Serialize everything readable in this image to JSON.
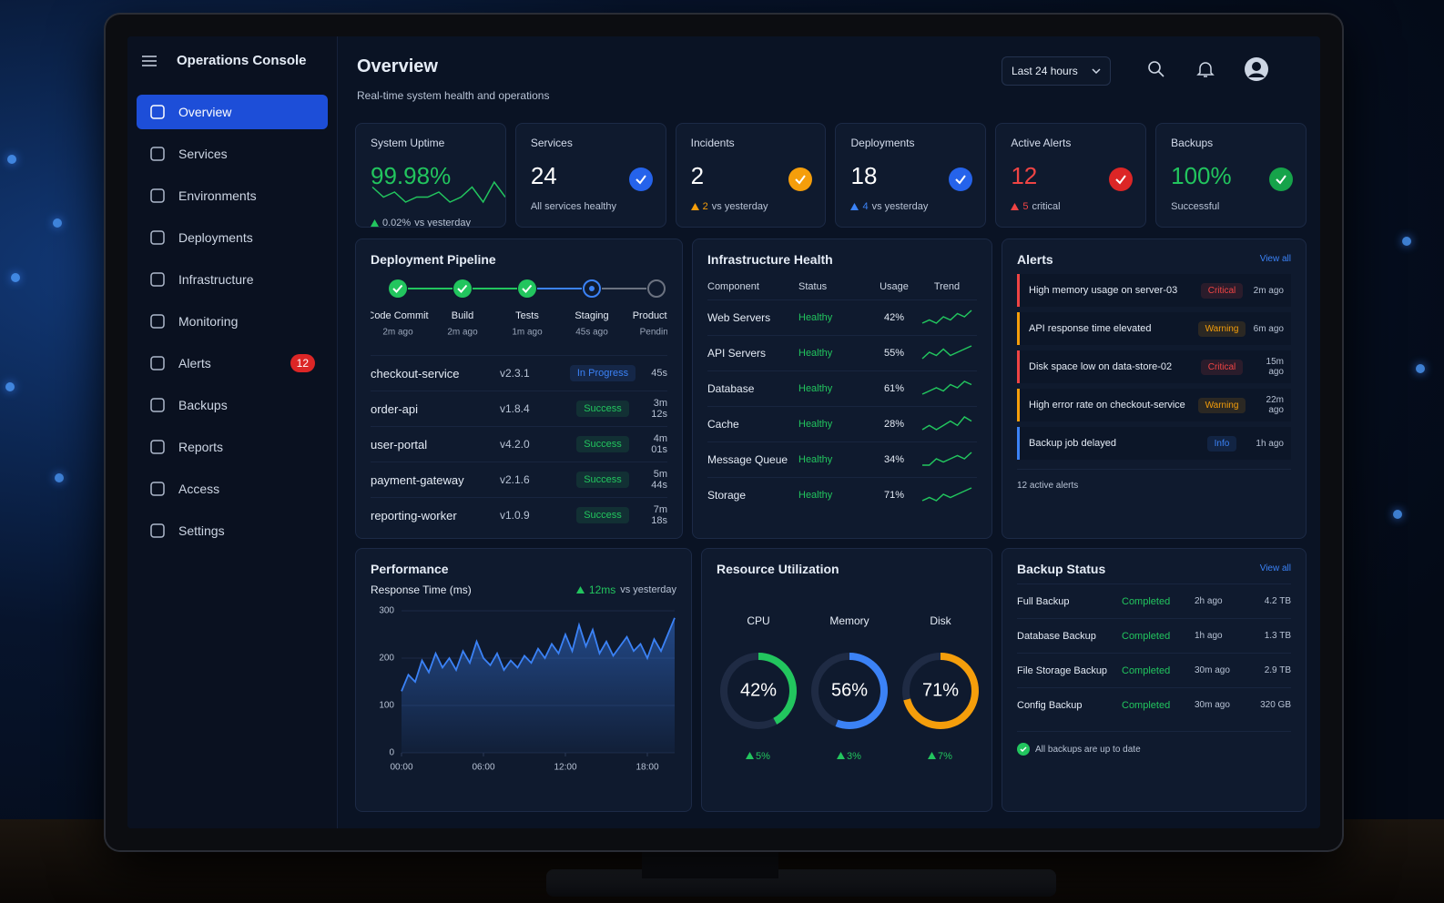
{
  "sidebar": {
    "title": "Operations Console",
    "nav": [
      {
        "label": "Overview",
        "active": true
      },
      {
        "label": "Services"
      },
      {
        "label": "Environments"
      },
      {
        "label": "Deployments"
      },
      {
        "label": "Infrastructure"
      },
      {
        "label": "Monitoring"
      },
      {
        "label": "Alerts",
        "badge": "12"
      },
      {
        "label": "Backups"
      },
      {
        "label": "Reports"
      },
      {
        "label": "Access"
      },
      {
        "label": "Settings"
      }
    ]
  },
  "header": {
    "title": "Overview",
    "subtitle": "Real-time system health and operations",
    "time_range": "Last 24 hours"
  },
  "kpis": [
    {
      "label": "System Uptime",
      "value": "99.98%",
      "color": "#22c55e",
      "delta": "0.02%",
      "delta_text": "vs yesterday",
      "delta_color": "#22c55e",
      "trend": [
        5,
        3,
        4,
        2,
        3,
        3,
        4,
        2,
        3,
        5,
        2,
        6,
        3
      ]
    },
    {
      "label": "Services",
      "value": "24",
      "note": "All services healthy",
      "icon_color": "#2563eb"
    },
    {
      "label": "Incidents",
      "value": "2",
      "delta": "2",
      "delta_text": "vs yesterday",
      "delta_color": "#f59e0b",
      "icon_color": "#f59e0b"
    },
    {
      "label": "Deployments",
      "value": "18",
      "delta": "4",
      "delta_text": "vs yesterday",
      "delta_color": "#3b82f6",
      "icon_color": "#2563eb"
    },
    {
      "label": "Active Alerts",
      "value": "12",
      "color": "#ef4444",
      "delta": "5",
      "delta_text": "critical",
      "delta_color": "#ef4444",
      "icon_color": "#dc2626"
    },
    {
      "label": "Backups",
      "value": "100%",
      "color": "#22c55e",
      "note": "Successful",
      "icon_color": "#16a34a"
    }
  ],
  "pipeline": {
    "title": "Deployment Pipeline",
    "stages": [
      {
        "name": "Code Commit",
        "time": "2m ago",
        "state": "done"
      },
      {
        "name": "Build",
        "time": "2m ago",
        "state": "done"
      },
      {
        "name": "Tests",
        "time": "1m ago",
        "state": "done"
      },
      {
        "name": "Staging",
        "time": "45s ago",
        "state": "active"
      },
      {
        "name": "Production",
        "time": "Pending",
        "state": "pending"
      }
    ],
    "deployments": [
      {
        "service": "checkout-service",
        "version": "v2.3.1",
        "status": "In Progress",
        "status_color": "#3b82f6",
        "duration": "45s"
      },
      {
        "service": "order-api",
        "version": "v1.8.4",
        "status": "Success",
        "status_color": "#22c55e",
        "duration": "3m 12s"
      },
      {
        "service": "user-portal",
        "version": "v4.2.0",
        "status": "Success",
        "status_color": "#22c55e",
        "duration": "4m 01s"
      },
      {
        "service": "payment-gateway",
        "version": "v2.1.6",
        "status": "Success",
        "status_color": "#22c55e",
        "duration": "5m 44s"
      },
      {
        "service": "reporting-worker",
        "version": "v1.0.9",
        "status": "Success",
        "status_color": "#22c55e",
        "duration": "7m 18s"
      }
    ]
  },
  "infrastructure": {
    "title": "Infrastructure Health",
    "columns": [
      "Component",
      "Status",
      "Usage",
      "Trend"
    ],
    "rows": [
      {
        "component": "Web Servers",
        "status": "Healthy",
        "usage": "42%",
        "trend": [
          2,
          3,
          2,
          4,
          3,
          5,
          4,
          6
        ]
      },
      {
        "component": "API Servers",
        "status": "Healthy",
        "usage": "55%",
        "trend": [
          2,
          4,
          3,
          5,
          3,
          4,
          5,
          6
        ]
      },
      {
        "component": "Database",
        "status": "Healthy",
        "usage": "61%",
        "trend": [
          2,
          3,
          4,
          3,
          5,
          4,
          6,
          5
        ]
      },
      {
        "component": "Cache",
        "status": "Healthy",
        "usage": "28%",
        "trend": [
          2,
          3,
          2,
          3,
          4,
          3,
          5,
          4
        ]
      },
      {
        "component": "Message Queue",
        "status": "Healthy",
        "usage": "34%",
        "trend": [
          2,
          2,
          4,
          3,
          4,
          5,
          4,
          6
        ]
      },
      {
        "component": "Storage",
        "status": "Healthy",
        "usage": "71%",
        "trend": [
          2,
          3,
          2,
          4,
          3,
          4,
          5,
          6
        ]
      }
    ]
  },
  "alerts": {
    "title": "Alerts",
    "view_all": "View all",
    "footer": "12 active alerts",
    "items": [
      {
        "text": "High memory usage on server-03",
        "severity": "Critical",
        "color": "#ef4444",
        "time": "2m ago"
      },
      {
        "text": "API response time elevated",
        "severity": "Warning",
        "color": "#f59e0b",
        "time": "6m ago"
      },
      {
        "text": "Disk space low on data-store-02",
        "severity": "Critical",
        "color": "#ef4444",
        "time": "15m ago"
      },
      {
        "text": "High error rate on checkout-service",
        "severity": "Warning",
        "color": "#f59e0b",
        "time": "22m ago"
      },
      {
        "text": "Backup job delayed",
        "severity": "Info",
        "color": "#3b82f6",
        "time": "1h ago"
      }
    ]
  },
  "performance": {
    "title": "Performance",
    "chart_data": {
      "type": "line",
      "y_label": "Response Time (ms)",
      "delta": "12ms",
      "delta_text": "vs yesterday",
      "color": "#3b82f6",
      "xlim": [
        0,
        20
      ],
      "ylim": [
        0,
        300
      ],
      "yticks": [
        0,
        100,
        200,
        300
      ],
      "xticks": [
        {
          "value": 0,
          "label": "00:00"
        },
        {
          "value": 6,
          "label": "06:00"
        },
        {
          "value": 12,
          "label": "12:00"
        },
        {
          "value": 18,
          "label": "18:00"
        }
      ],
      "x": [
        0,
        0.5,
        1,
        1.5,
        2,
        2.5,
        3,
        3.5,
        4,
        4.5,
        5,
        5.5,
        6,
        6.5,
        7,
        7.5,
        8,
        8.5,
        9,
        9.5,
        10,
        10.5,
        11,
        11.5,
        12,
        12.5,
        13,
        13.5,
        14,
        14.5,
        15,
        15.5,
        16,
        16.5,
        17,
        17.5,
        18,
        18.5,
        19,
        19.5,
        20
      ],
      "values": [
        130,
        165,
        150,
        195,
        170,
        210,
        180,
        200,
        175,
        215,
        190,
        235,
        200,
        185,
        210,
        175,
        195,
        180,
        205,
        190,
        220,
        200,
        230,
        210,
        250,
        215,
        270,
        225,
        260,
        210,
        235,
        205,
        225,
        245,
        215,
        230,
        200,
        240,
        215,
        250,
        285
      ]
    }
  },
  "resources": {
    "title": "Resource Utilization",
    "gauges": [
      {
        "label": "CPU",
        "value": 42,
        "value_label": "42%",
        "delta": "5%",
        "color": "#22c55e"
      },
      {
        "label": "Memory",
        "value": 56,
        "value_label": "56%",
        "delta": "3%",
        "color": "#3b82f6"
      },
      {
        "label": "Disk",
        "value": 71,
        "value_label": "71%",
        "delta": "7%",
        "color": "#f59e0b"
      }
    ]
  },
  "backups": {
    "title": "Backup Status",
    "view_all": "View all",
    "footer": "All backups are up to date",
    "rows": [
      {
        "name": "Full Backup",
        "status": "Completed",
        "time": "2h ago",
        "size": "4.2 TB"
      },
      {
        "name": "Database Backup",
        "status": "Completed",
        "time": "1h ago",
        "size": "1.3 TB"
      },
      {
        "name": "File Storage Backup",
        "status": "Completed",
        "time": "30m ago",
        "size": "2.9 TB"
      },
      {
        "name": "Config Backup",
        "status": "Completed",
        "time": "30m ago",
        "size": "320 GB"
      }
    ]
  }
}
